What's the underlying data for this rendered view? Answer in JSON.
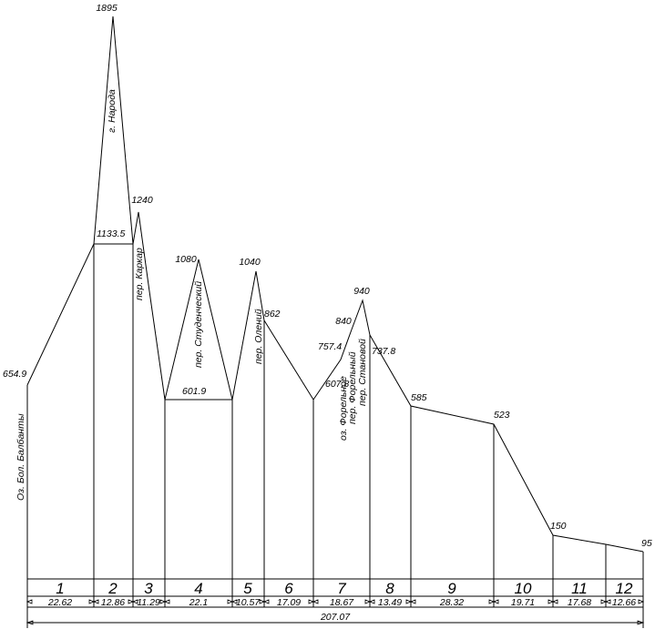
{
  "chart_data": {
    "type": "area",
    "peaks": [
      {
        "value": "1895"
      },
      {
        "value": "1240"
      },
      {
        "value": "1080"
      },
      {
        "value": "1040"
      },
      {
        "value": "940"
      },
      {
        "value": "840"
      }
    ],
    "elevations": [
      {
        "value": "654.9"
      },
      {
        "value": "1133.5"
      },
      {
        "value": "601.9"
      },
      {
        "value": "862"
      },
      {
        "value": "607.8"
      },
      {
        "value": "757.4"
      },
      {
        "value": "737.8"
      },
      {
        "value": "585"
      },
      {
        "value": "523"
      },
      {
        "value": "150"
      },
      {
        "value": "95"
      }
    ],
    "places": [
      {
        "label": "Оз. Бол. Балбанты"
      },
      {
        "label": "г. Народа"
      },
      {
        "label": "пер. Каркар"
      },
      {
        "label": "пер. Студенческий"
      },
      {
        "label": "пер. Олений"
      },
      {
        "label": "оз. Форельное"
      },
      {
        "label": "пер. Форельный"
      },
      {
        "label": "пер. Становой"
      }
    ],
    "segments": [
      {
        "num": "1",
        "length": "22.62"
      },
      {
        "num": "2",
        "length": "12.86"
      },
      {
        "num": "3",
        "length": "11.29"
      },
      {
        "num": "4",
        "length": "22.1"
      },
      {
        "num": "5",
        "length": "10.57"
      },
      {
        "num": "6",
        "length": "17.09"
      },
      {
        "num": "7",
        "length": "18.67"
      },
      {
        "num": "8",
        "length": "13.49"
      },
      {
        "num": "9",
        "length": "28.32"
      },
      {
        "num": "10",
        "length": "19.71"
      },
      {
        "num": "11",
        "length": "17.68"
      },
      {
        "num": "12",
        "length": "12.66"
      }
    ],
    "total_length": "207.07"
  }
}
